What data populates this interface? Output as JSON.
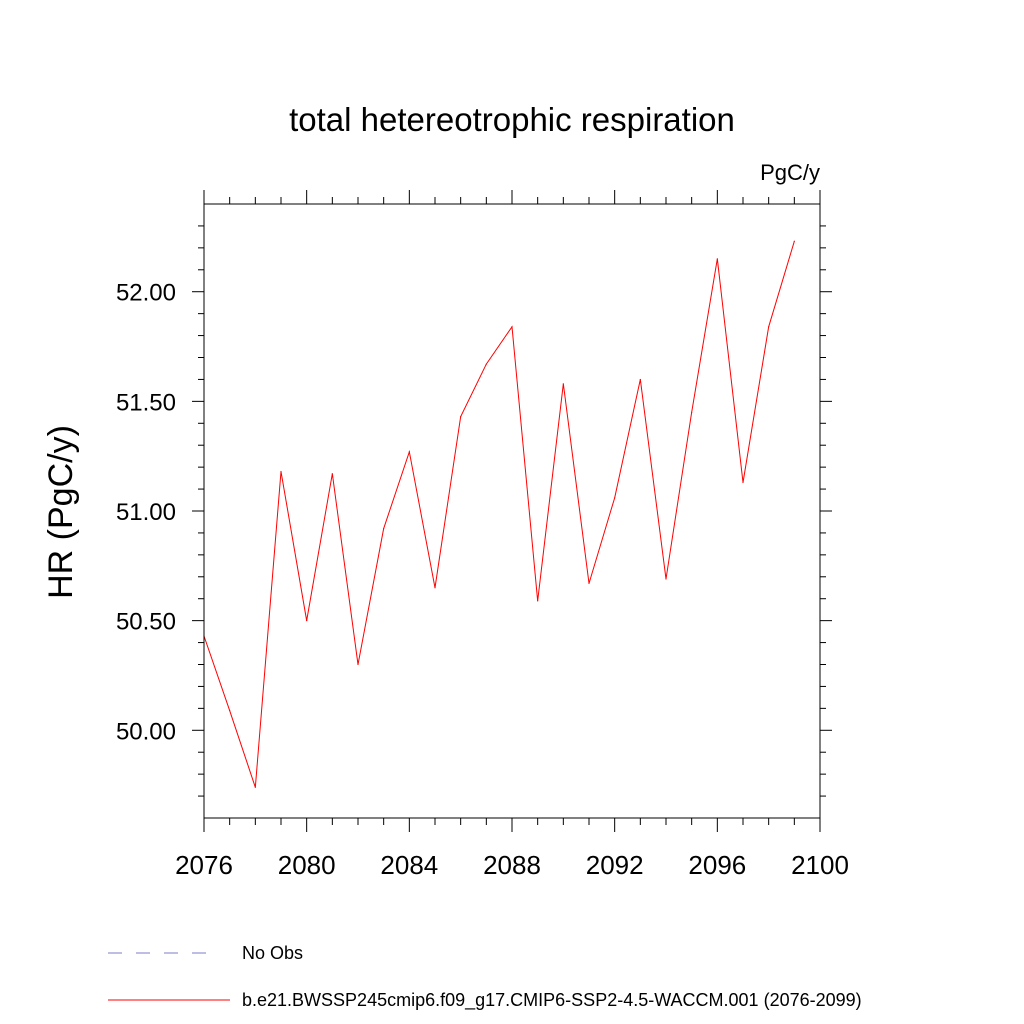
{
  "chart_data": {
    "type": "line",
    "title": "total hetereotrophic respiration",
    "units_label": "PgC/y",
    "ylabel": "HR  (PgC/y)",
    "xlabel": "",
    "xlim": [
      2076,
      2100
    ],
    "ylim": [
      49.6,
      52.4
    ],
    "x_ticks": [
      2076,
      2080,
      2084,
      2088,
      2092,
      2096,
      2100
    ],
    "y_ticks": [
      50.0,
      50.5,
      51.0,
      51.5,
      52.0
    ],
    "y_tick_labels": [
      "50.00",
      "50.50",
      "51.00",
      "51.50",
      "52.00"
    ],
    "series": [
      {
        "name": "b.e21.BWSSP245cmip6.f09_g17.CMIP6-SSP2-4.5-WACCM.001 (2076-2099)",
        "color": "#ff0000",
        "x": [
          2076,
          2077,
          2078,
          2079,
          2080,
          2081,
          2082,
          2083,
          2084,
          2085,
          2086,
          2087,
          2088,
          2089,
          2090,
          2091,
          2092,
          2093,
          2094,
          2095,
          2096,
          2097,
          2098,
          2099
        ],
        "values": [
          50.43,
          50.09,
          49.74,
          51.18,
          50.5,
          51.17,
          50.3,
          50.92,
          51.27,
          50.65,
          51.43,
          51.67,
          51.84,
          50.59,
          51.58,
          50.67,
          51.06,
          51.6,
          50.69,
          51.45,
          52.15,
          51.13,
          51.84,
          52.23
        ]
      }
    ],
    "legend": [
      {
        "label": "No Obs",
        "style": "dashed",
        "color": "#7d7dc8"
      },
      {
        "label": "b.e21.BWSSP245cmip6.f09_g17.CMIP6-SSP2-4.5-WACCM.001 (2076-2099)",
        "style": "solid",
        "color": "#ff0000"
      }
    ]
  }
}
